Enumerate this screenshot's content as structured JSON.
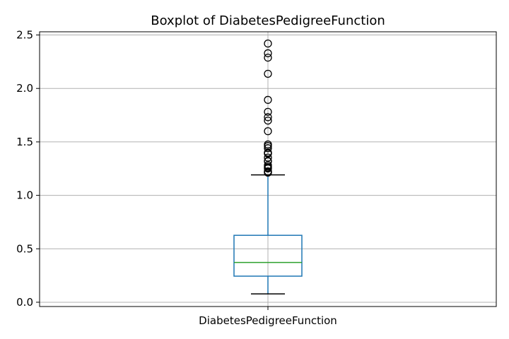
{
  "chart_data": {
    "type": "boxplot",
    "title": "Boxplot of DiabetesPedigreeFunction",
    "categories": [
      "DiabetesPedigreeFunction"
    ],
    "ylim": [
      -0.04,
      2.53
    ],
    "yticks": [
      "0.0",
      "0.5",
      "1.0",
      "1.5",
      "2.0",
      "2.5"
    ],
    "grid": true,
    "box": {
      "whisker_low": 0.078,
      "q1": 0.244,
      "median": 0.3725,
      "q3": 0.626,
      "whisker_high": 1.191
    },
    "outliers": [
      2.42,
      2.329,
      2.288,
      2.137,
      1.893,
      1.781,
      1.731,
      1.699,
      1.6,
      1.476,
      1.461,
      1.441,
      1.4,
      1.394,
      1.39,
      1.353,
      1.318,
      1.321,
      1.282,
      1.251,
      1.258,
      1.268,
      1.222,
      1.213,
      1.224,
      1.213
    ],
    "colors": {
      "box": "#1f77b4",
      "median": "#2ca02c",
      "whisker_cap": "#000000",
      "outlier": "#000000",
      "grid": "#b0b0b0"
    }
  }
}
